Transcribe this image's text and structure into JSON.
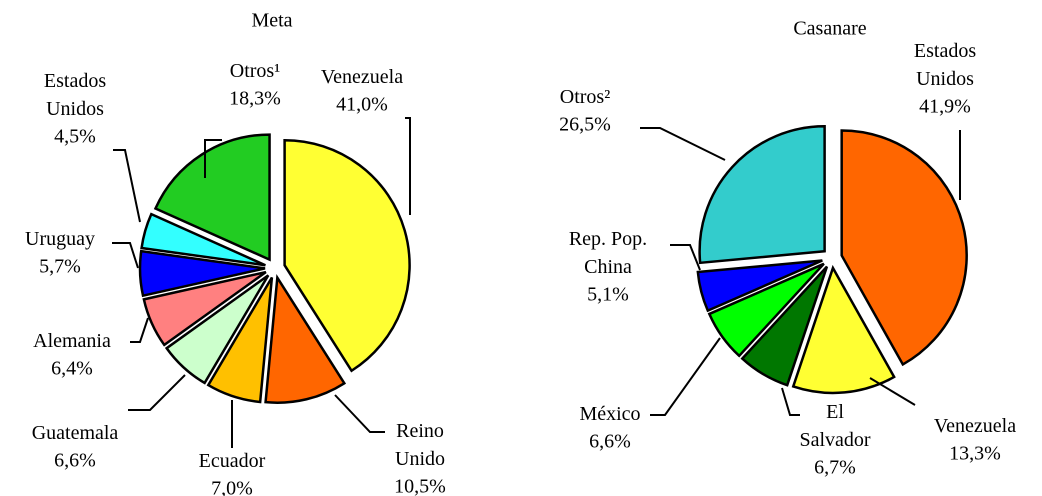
{
  "chart_data": [
    {
      "type": "pie",
      "title": "Meta",
      "categories": [
        "Venezuela",
        "Reino Unido",
        "Ecuador",
        "Guatemala",
        "Alemania",
        "Uruguay",
        "Estados Unidos",
        "Otros¹"
      ],
      "values": [
        41.0,
        10.5,
        7.0,
        6.6,
        6.4,
        5.7,
        4.5,
        18.3
      ],
      "value_labels": [
        "41,0%",
        "10,5%",
        "7,0%",
        "6,6%",
        "6,4%",
        "5,7%",
        "4,5%",
        "18,3%"
      ],
      "colors": [
        "#ffff33",
        "#ff6600",
        "#ffc000",
        "#ccffcc",
        "#ff8080",
        "#0000ff",
        "#33ffff",
        "#22cc22"
      ]
    },
    {
      "type": "pie",
      "title": "Casanare",
      "categories": [
        "Estados Unidos",
        "Venezuela",
        "El Salvador",
        "México",
        "Rep. Pop. China",
        "Otros²"
      ],
      "values": [
        41.9,
        13.3,
        6.7,
        6.6,
        5.1,
        26.5
      ],
      "value_labels": [
        "41,9%",
        "13,3%",
        "6,7%",
        "6,6%",
        "5,1%",
        "26,5%"
      ],
      "colors": [
        "#ff6600",
        "#ffff33",
        "#007700",
        "#00ff00",
        "#0000ff",
        "#33cccc"
      ]
    }
  ]
}
